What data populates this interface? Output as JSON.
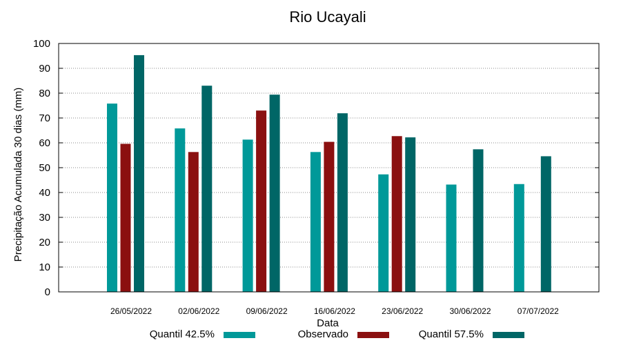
{
  "chart_data": {
    "type": "bar",
    "title": "Rio Ucayali",
    "xlabel": "Data",
    "ylabel": "Precipitação Acumulada 30 dias (mm)",
    "ylim": [
      0,
      100
    ],
    "yticks": [
      0,
      10,
      20,
      30,
      40,
      50,
      60,
      70,
      80,
      90,
      100
    ],
    "grid": true,
    "legend_position": "bottom",
    "categories": [
      "26/05/2022",
      "02/06/2022",
      "09/06/2022",
      "16/06/2022",
      "23/06/2022",
      "30/06/2022",
      "07/07/2022"
    ],
    "series": [
      {
        "name": "Quantil 42.5%",
        "color": "#009999",
        "values": [
          75.8,
          65.8,
          61.3,
          56.3,
          47.3,
          43.2,
          43.4
        ]
      },
      {
        "name": "Observado",
        "color": "#8b1010",
        "values": [
          59.6,
          56.3,
          73.0,
          60.4,
          62.7,
          null,
          null
        ]
      },
      {
        "name": "Quantil 57.5%",
        "color": "#006666",
        "values": [
          95.3,
          83.0,
          79.4,
          71.9,
          62.2,
          57.4,
          54.6
        ]
      }
    ]
  }
}
